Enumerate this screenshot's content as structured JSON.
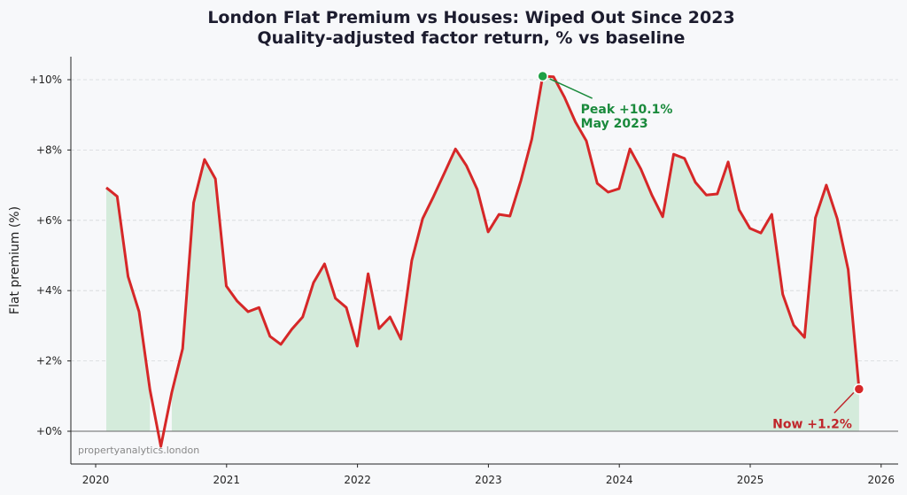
{
  "chart_data": {
    "type": "line",
    "title": "London Flat Premium vs Houses: Wiped Out Since 2023",
    "subtitle": "Quality-adjusted factor return, % vs baseline",
    "xlabel": "",
    "ylabel": "Flat premium (%)",
    "xlim": [
      "2019-10",
      "2026-02"
    ],
    "ylim": [
      -0.9,
      10.6
    ],
    "grid": "horizontal dashed",
    "x_ticks": [
      "2020",
      "2021",
      "2022",
      "2023",
      "2024",
      "2025",
      "2026"
    ],
    "y_ticks": [
      0,
      2,
      4,
      6,
      8,
      10
    ],
    "y_tick_labels": [
      "+0%",
      "+2%",
      "+4%",
      "+6%",
      "+8%",
      "+10%"
    ],
    "series": [
      {
        "start_month": "2020-01",
        "frequency": "monthly",
        "line_color": "#d62728",
        "fill_color": "#d4ebdb",
        "values": [
          6.93,
          6.68,
          4.4,
          3.4,
          1.18,
          -0.43,
          1.1,
          2.35,
          6.5,
          7.73,
          7.18,
          4.13,
          3.7,
          3.4,
          3.52,
          2.7,
          2.47,
          2.9,
          3.25,
          4.23,
          4.76,
          3.78,
          3.52,
          2.42,
          4.48,
          2.92,
          3.25,
          2.62,
          4.86,
          6.05,
          6.68,
          7.35,
          8.03,
          7.56,
          6.88,
          5.67,
          6.17,
          6.12,
          7.13,
          8.31,
          10.1,
          10.08,
          9.5,
          8.8,
          8.26,
          7.05,
          6.8,
          6.9,
          8.03,
          7.46,
          6.72,
          6.1,
          7.88,
          7.76,
          7.08,
          6.72,
          6.75,
          7.66,
          6.3,
          5.77,
          5.64,
          6.17,
          3.9,
          3.02,
          2.67,
          6.07,
          7.0,
          6.05,
          4.6,
          1.2
        ]
      }
    ],
    "annotations": {
      "peak": {
        "line1": "Peak +10.1%",
        "line2": "May 2023",
        "index": 40,
        "color": "#1a8a3c",
        "marker_color": "#1fa045"
      },
      "now": {
        "text": "Now +1.2%",
        "index": 69,
        "color": "#c0262b",
        "marker_color": "#d62728"
      }
    },
    "watermark": "propertyanalytics.london"
  }
}
